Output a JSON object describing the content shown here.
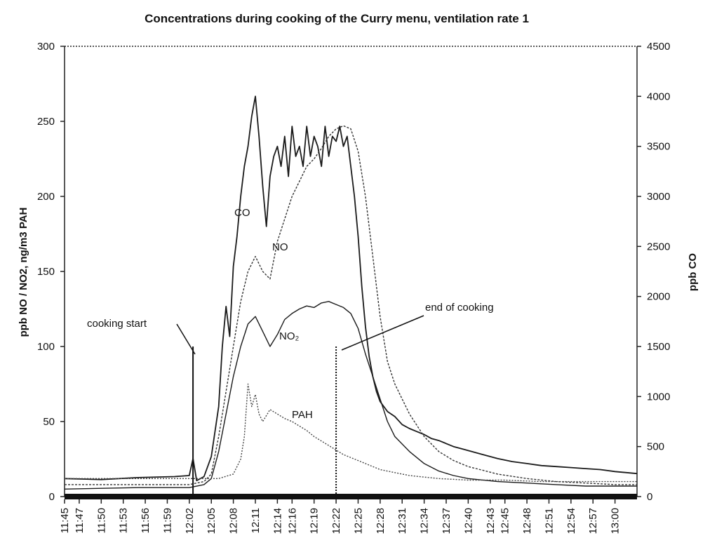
{
  "chart_data": {
    "type": "line",
    "title": "Concentrations during cooking of the Curry menu, ventilation rate 1",
    "ylabel": "ppb NO / NO2, ng/m3 PAH",
    "ylabel_right": "ppb CO",
    "xlabel": "",
    "ylim": [
      0,
      300
    ],
    "ylim_right": [
      0,
      4500
    ],
    "yticks": [
      "0",
      "50",
      "100",
      "150",
      "200",
      "250",
      "300"
    ],
    "yticks_right": [
      "0",
      "500",
      "1000",
      "1500",
      "2000",
      "2500",
      "3000",
      "3500",
      "4000",
      "4500"
    ],
    "x_tick_labels": [
      "11:45",
      "11:47",
      "11:50",
      "11:53",
      "11:56",
      "11:59",
      "12:02",
      "12:05",
      "12:08",
      "12:11",
      "12:14",
      "12:16",
      "12:19",
      "12:22",
      "12:25",
      "12:28",
      "12:31",
      "12:34",
      "12:37",
      "12:40",
      "12:43",
      "12:45",
      "12:48",
      "12:51",
      "12:54",
      "12:57",
      "13:00"
    ],
    "x_tick_minutes": [
      705,
      707,
      710,
      713,
      716,
      719,
      722,
      725,
      728,
      731,
      734,
      736,
      739,
      742,
      745,
      748,
      751,
      754,
      757,
      760,
      763,
      765,
      768,
      771,
      774,
      777,
      780
    ],
    "x_range_minutes": [
      705,
      783
    ],
    "series": [
      {
        "name": "CO",
        "axis": "right",
        "x": [
          705,
          710,
          715,
          720,
          722,
          722.5,
          723,
          724,
          725,
          726,
          726.5,
          727,
          727.5,
          728,
          728.5,
          729,
          729.5,
          730,
          730.5,
          731,
          731.5,
          732,
          732.5,
          733,
          733.5,
          734,
          734.5,
          735,
          735.5,
          736,
          736.5,
          737,
          737.5,
          738,
          738.5,
          739,
          739.5,
          740,
          740.5,
          741,
          741.5,
          742,
          742.5,
          743,
          743.5,
          744,
          744.5,
          745,
          745.5,
          746,
          746.5,
          747,
          747.5,
          748,
          749,
          750,
          751,
          752,
          753,
          754,
          755,
          756,
          757,
          758,
          759,
          760,
          762,
          764,
          766,
          768,
          770,
          772,
          774,
          776,
          778,
          780,
          783
        ],
        "values": [
          180,
          170,
          190,
          200,
          210,
          380,
          160,
          200,
          400,
          900,
          1500,
          1900,
          1600,
          2300,
          2600,
          3000,
          3300,
          3500,
          3800,
          4000,
          3600,
          3100,
          2700,
          3200,
          3400,
          3500,
          3300,
          3600,
          3200,
          3700,
          3400,
          3500,
          3300,
          3700,
          3400,
          3600,
          3500,
          3300,
          3700,
          3400,
          3600,
          3550,
          3700,
          3500,
          3600,
          3300,
          3000,
          2600,
          2100,
          1700,
          1400,
          1200,
          1050,
          950,
          850,
          800,
          720,
          680,
          650,
          620,
          580,
          560,
          530,
          500,
          480,
          460,
          420,
          380,
          350,
          330,
          310,
          300,
          290,
          280,
          270,
          250,
          230
        ]
      },
      {
        "name": "NO",
        "axis": "left",
        "x": [
          705,
          715,
          722,
          724,
          725,
          726,
          727,
          728,
          729,
          730,
          731,
          732,
          733,
          734,
          735,
          736,
          737,
          738,
          739,
          740,
          741,
          742,
          743,
          744,
          745,
          746,
          747,
          748,
          749,
          750,
          752,
          754,
          756,
          758,
          760,
          764,
          768,
          772,
          776,
          780,
          783
        ],
        "values": [
          8,
          8,
          8,
          10,
          15,
          40,
          70,
          100,
          130,
          150,
          160,
          150,
          145,
          170,
          185,
          200,
          210,
          220,
          225,
          232,
          240,
          245,
          247,
          245,
          230,
          200,
          160,
          120,
          90,
          75,
          55,
          40,
          30,
          24,
          20,
          15,
          12,
          10,
          9,
          8,
          8
        ]
      },
      {
        "name": "NO₂",
        "axis": "left",
        "x": [
          705,
          715,
          722,
          724,
          725,
          726,
          727,
          728,
          729,
          730,
          731,
          732,
          733,
          734,
          735,
          736,
          737,
          738,
          739,
          740,
          741,
          742,
          743,
          744,
          745,
          746,
          747,
          748,
          749,
          750,
          752,
          754,
          756,
          758,
          760,
          764,
          768,
          772,
          776,
          780,
          783
        ],
        "values": [
          5,
          6,
          6,
          8,
          12,
          30,
          55,
          80,
          100,
          115,
          120,
          110,
          100,
          108,
          118,
          122,
          125,
          127,
          126,
          129,
          130,
          128,
          126,
          122,
          112,
          95,
          80,
          65,
          50,
          40,
          30,
          22,
          17,
          14,
          12,
          10,
          9,
          8,
          7,
          7,
          7
        ]
      },
      {
        "name": "PAH",
        "axis": "left",
        "x": [
          705,
          715,
          722,
          726,
          728,
          729,
          729.5,
          730,
          730.5,
          731,
          731.5,
          732,
          733,
          734,
          735,
          736,
          737,
          738,
          739,
          740,
          741,
          742,
          743,
          744,
          745,
          746,
          748,
          750,
          752,
          754,
          756,
          760,
          765,
          770,
          775,
          780,
          783
        ],
        "values": [
          12,
          12,
          12,
          12,
          15,
          25,
          40,
          75,
          60,
          68,
          55,
          50,
          58,
          55,
          52,
          50,
          47,
          44,
          40,
          37,
          34,
          31,
          28,
          26,
          24,
          22,
          18,
          16,
          14,
          13,
          12,
          11,
          11,
          10,
          10,
          10,
          10
        ]
      }
    ],
    "annotations": [
      {
        "text": "cooking start",
        "x_minute": 722.5
      },
      {
        "text": "end of cooking",
        "x_minute": 742
      }
    ],
    "grid": false
  }
}
